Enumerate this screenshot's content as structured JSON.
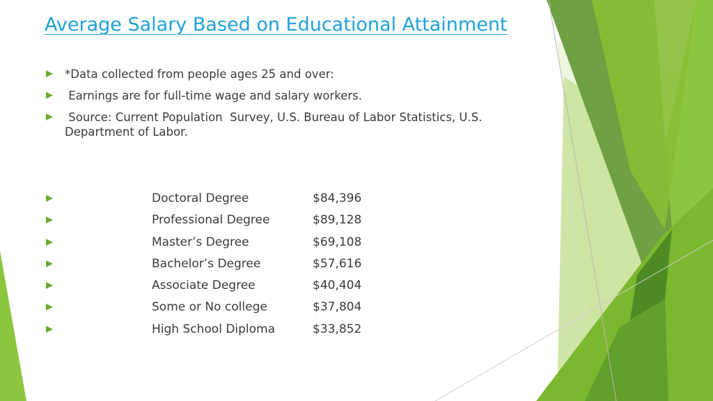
{
  "title": "Average Salary Based on Educational Attainment",
  "notes": [
    "*Data collected from people ages 25 and over:",
    " Earnings are for full-time wage and salary workers.",
    " Source: Current Population  Survey, U.S. Bureau of Labor Statistics, U.S. Department of Labor."
  ],
  "salaries": [
    {
      "degree": "Doctoral Degree",
      "amount": "$84,396"
    },
    {
      "degree": "Professional Degree",
      "amount": "$89,128"
    },
    {
      "degree": "Master’s Degree",
      "amount": "$69,108"
    },
    {
      "degree": "Bachelor’s Degree",
      "amount": "$57,616"
    },
    {
      "degree": "Associate Degree",
      "amount": "$40,404"
    },
    {
      "degree": "Some or No college",
      "amount": "$37,804"
    },
    {
      "degree": "High School Diploma",
      "amount": "$33,852"
    }
  ],
  "colors": {
    "title": "#1fa2d8",
    "bullet": "#6aaa2a",
    "text": "#3a3a3a"
  },
  "icons": {
    "bullet": "triangle-arrow-icon"
  }
}
